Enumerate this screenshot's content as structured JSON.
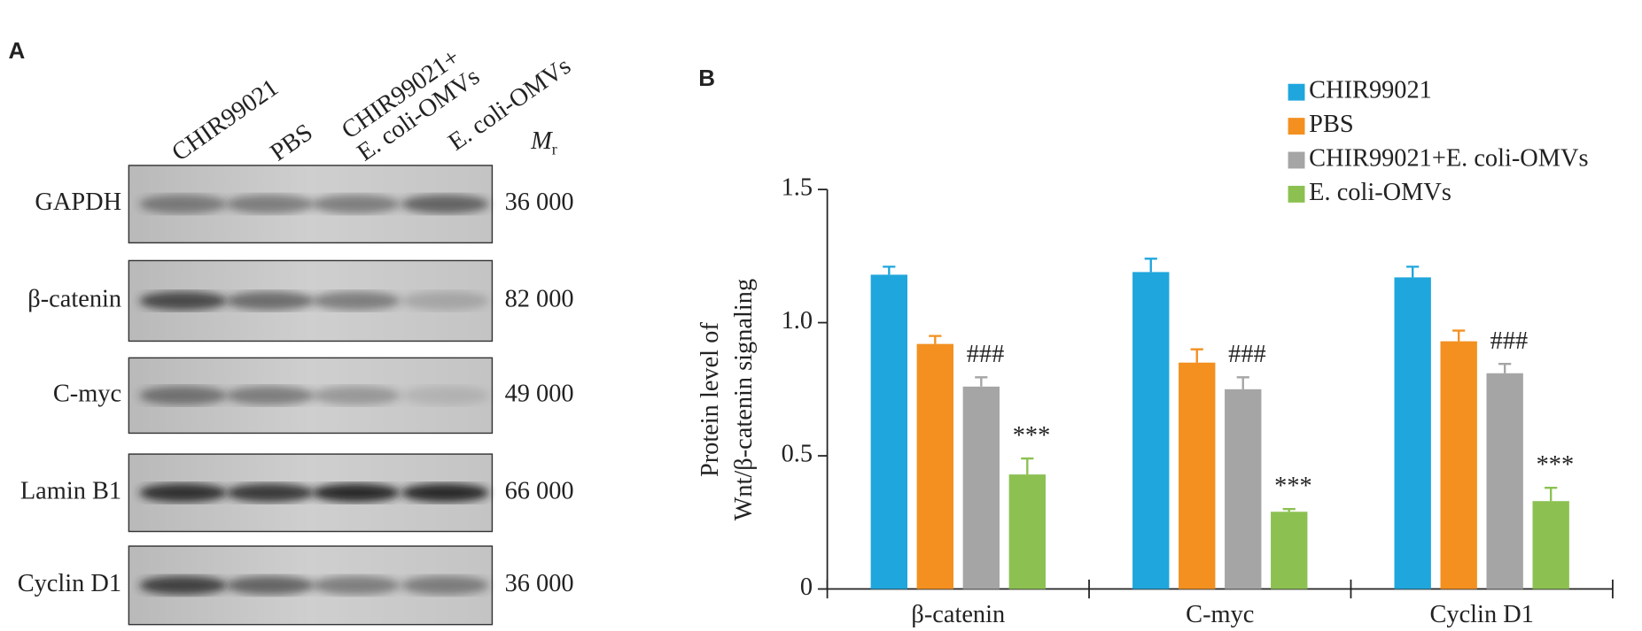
{
  "panel_a": {
    "label": "A",
    "lanes": [
      [
        "CHIR99021"
      ],
      [
        "PBS"
      ],
      [
        "CHIR99021+",
        "E. coli-OMVs"
      ],
      [
        "E. coli-OMVs"
      ]
    ],
    "mr_header": {
      "symbol": "M",
      "subscript": "r"
    },
    "rows": [
      {
        "protein": "GAPDH",
        "mr": "36 000"
      },
      {
        "protein": "β-catenin",
        "mr": "82 000"
      },
      {
        "protein": "C-myc",
        "mr": "49 000"
      },
      {
        "protein": "Lamin B1",
        "mr": "66 000"
      },
      {
        "protein": "Cyclin D1",
        "mr": "36 000"
      }
    ]
  },
  "chart_data": {
    "type": "bar",
    "panel_label": "B",
    "ylabel": [
      "Protein level of",
      "Wnt/β-catenin signaling"
    ],
    "categories": [
      "β-catenin",
      "C-myc",
      "Cyclin D1"
    ],
    "series": [
      {
        "name": "CHIR99021",
        "color": "#1fa6dc",
        "values": [
          1.18,
          1.19,
          1.17
        ],
        "errors": [
          0.03,
          0.05,
          0.04
        ]
      },
      {
        "name": "PBS",
        "color": "#f39020",
        "values": [
          0.92,
          0.85,
          0.93
        ],
        "errors": [
          0.03,
          0.05,
          0.04
        ]
      },
      {
        "name": "CHIR99021+E. coli-OMVs",
        "color": "#a5a5a5",
        "values": [
          0.76,
          0.75,
          0.81
        ],
        "errors": [
          0.035,
          0.045,
          0.035
        ],
        "significance": [
          "###",
          "###",
          "###"
        ]
      },
      {
        "name": "E. coli-OMVs",
        "color": "#8cc152",
        "values": [
          0.43,
          0.29,
          0.33
        ],
        "errors": [
          0.06,
          0.01,
          0.05
        ],
        "significance": [
          "***",
          "***",
          "***"
        ]
      }
    ],
    "ylim": [
      0,
      1.5
    ],
    "yticks": [
      0,
      0.5,
      {
        "value": 1,
        "label": "1.0"
      },
      1.5
    ],
    "legend": "top-right",
    "grid": false
  }
}
